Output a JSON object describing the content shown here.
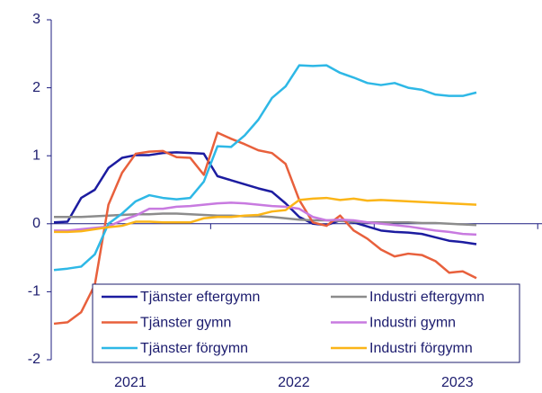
{
  "chart_data": {
    "type": "line",
    "categories": [
      null,
      null,
      null,
      null,
      null,
      null,
      "2021",
      null,
      null,
      null,
      null,
      null,
      null,
      null,
      null,
      null,
      null,
      null,
      "2022",
      null,
      null,
      null,
      null,
      null,
      null,
      null,
      null,
      null,
      null,
      null,
      "2023",
      null
    ],
    "ylim": [
      -2,
      3
    ],
    "yticks": [
      -2,
      -1,
      0,
      1,
      2,
      3
    ],
    "grid": false,
    "series": [
      {
        "name": "Tjänster eftergymn",
        "color": "#1c1ca0",
        "values": [
          0.02,
          0.03,
          0.38,
          0.5,
          0.82,
          0.97,
          1.01,
          1.01,
          1.04,
          1.05,
          1.04,
          1.03,
          0.7,
          0.64,
          0.58,
          0.52,
          0.47,
          0.3,
          0.1,
          0.0,
          -0.02,
          0.05,
          0.02,
          -0.04,
          -0.1,
          -0.12,
          -0.13,
          -0.15,
          -0.2,
          -0.25,
          -0.27,
          -0.3
        ]
      },
      {
        "name": "Industri eftergymn",
        "color": "#8c8c8c",
        "values": [
          0.1,
          0.1,
          0.1,
          0.11,
          0.12,
          0.13,
          0.14,
          0.14,
          0.15,
          0.15,
          0.14,
          0.13,
          0.12,
          0.12,
          0.11,
          0.11,
          0.1,
          0.08,
          0.06,
          0.05,
          0.05,
          0.04,
          0.03,
          0.02,
          0.02,
          0.02,
          0.02,
          0.01,
          0.01,
          0.0,
          -0.01,
          -0.02
        ]
      },
      {
        "name": "Tjänster gymn",
        "color": "#e8603c",
        "values": [
          -1.47,
          -1.45,
          -1.3,
          -0.9,
          0.28,
          0.75,
          1.03,
          1.06,
          1.07,
          0.98,
          0.97,
          0.72,
          1.34,
          1.25,
          1.17,
          1.08,
          1.04,
          0.88,
          0.35,
          0.02,
          -0.03,
          0.12,
          -0.1,
          -0.22,
          -0.38,
          -0.48,
          -0.44,
          -0.46,
          -0.55,
          -0.72,
          -0.7,
          -0.8
        ]
      },
      {
        "name": "Industri gymn",
        "color": "#c87ae0",
        "values": [
          -0.1,
          -0.1,
          -0.08,
          -0.06,
          -0.04,
          0.05,
          0.12,
          0.22,
          0.22,
          0.25,
          0.26,
          0.28,
          0.3,
          0.31,
          0.3,
          0.28,
          0.26,
          0.25,
          0.22,
          0.1,
          0.05,
          0.06,
          0.05,
          0.02,
          0.0,
          -0.02,
          -0.04,
          -0.07,
          -0.1,
          -0.12,
          -0.15,
          -0.16
        ]
      },
      {
        "name": "Tjänster förgymn",
        "color": "#2eb8e6",
        "values": [
          -0.68,
          -0.66,
          -0.63,
          -0.45,
          0.0,
          0.15,
          0.33,
          0.42,
          0.38,
          0.36,
          0.38,
          0.62,
          1.14,
          1.13,
          1.3,
          1.53,
          1.85,
          2.02,
          2.33,
          2.32,
          2.33,
          2.22,
          2.15,
          2.07,
          2.04,
          2.07,
          2.0,
          1.97,
          1.9,
          1.88,
          1.88,
          1.93
        ]
      },
      {
        "name": "Industri förgymn",
        "color": "#fbb518",
        "values": [
          -0.12,
          -0.12,
          -0.11,
          -0.08,
          -0.05,
          -0.03,
          0.03,
          0.03,
          0.02,
          0.02,
          0.02,
          0.08,
          0.1,
          0.1,
          0.12,
          0.13,
          0.18,
          0.2,
          0.35,
          0.37,
          0.38,
          0.35,
          0.37,
          0.34,
          0.35,
          0.34,
          0.33,
          0.32,
          0.31,
          0.3,
          0.29,
          0.28
        ]
      }
    ]
  }
}
